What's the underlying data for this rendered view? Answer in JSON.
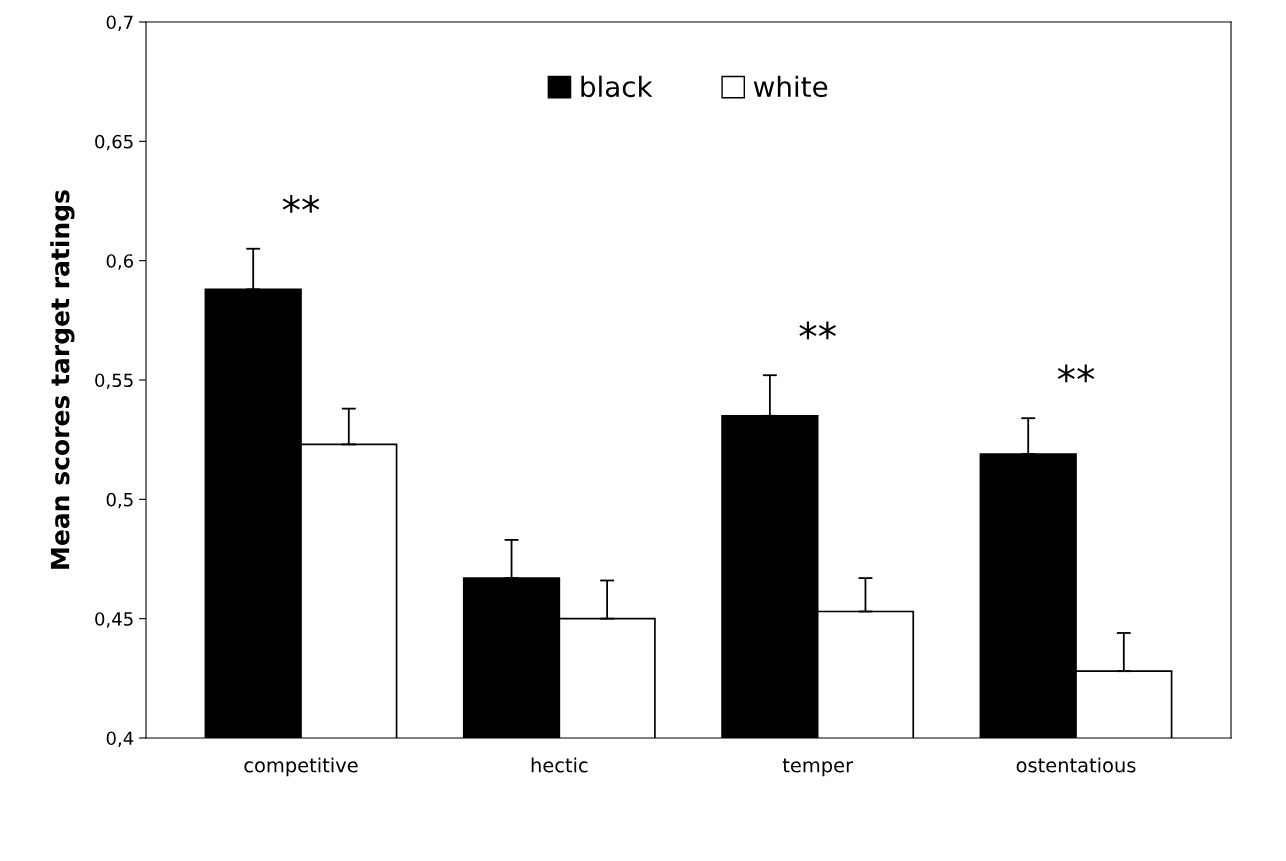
{
  "chart_data": {
    "type": "bar",
    "ylabel": "Mean scores target ratings",
    "categories": [
      "competitive",
      "hectic",
      "temper",
      "ostentatious"
    ],
    "series": [
      {
        "name": "black",
        "color": "#000000",
        "values": [
          0.588,
          0.467,
          0.535,
          0.519
        ],
        "errors": [
          [
            0.588,
            0.605
          ],
          [
            0.467,
            0.483
          ],
          [
            0.535,
            0.552
          ],
          [
            0.519,
            0.534
          ]
        ]
      },
      {
        "name": "white",
        "color": "#ffffff",
        "values": [
          0.523,
          0.45,
          0.453,
          0.428
        ],
        "errors": [
          [
            0.523,
            0.538
          ],
          [
            0.45,
            0.466
          ],
          [
            0.453,
            0.467
          ],
          [
            0.428,
            0.444
          ]
        ]
      }
    ],
    "ylim": [
      0.4,
      0.7
    ],
    "yticks": [
      {
        "value": 0.4,
        "label": "0,4"
      },
      {
        "value": 0.45,
        "label": "0,45"
      },
      {
        "value": 0.5,
        "label": "0,5"
      },
      {
        "value": 0.55,
        "label": "0,55"
      },
      {
        "value": 0.6,
        "label": "0,6"
      },
      {
        "value": 0.65,
        "label": "0,65"
      },
      {
        "value": 0.7,
        "label": "0,7"
      }
    ],
    "annotations": [
      "**",
      "**",
      "**"
    ],
    "grid": false,
    "legend": "top"
  }
}
